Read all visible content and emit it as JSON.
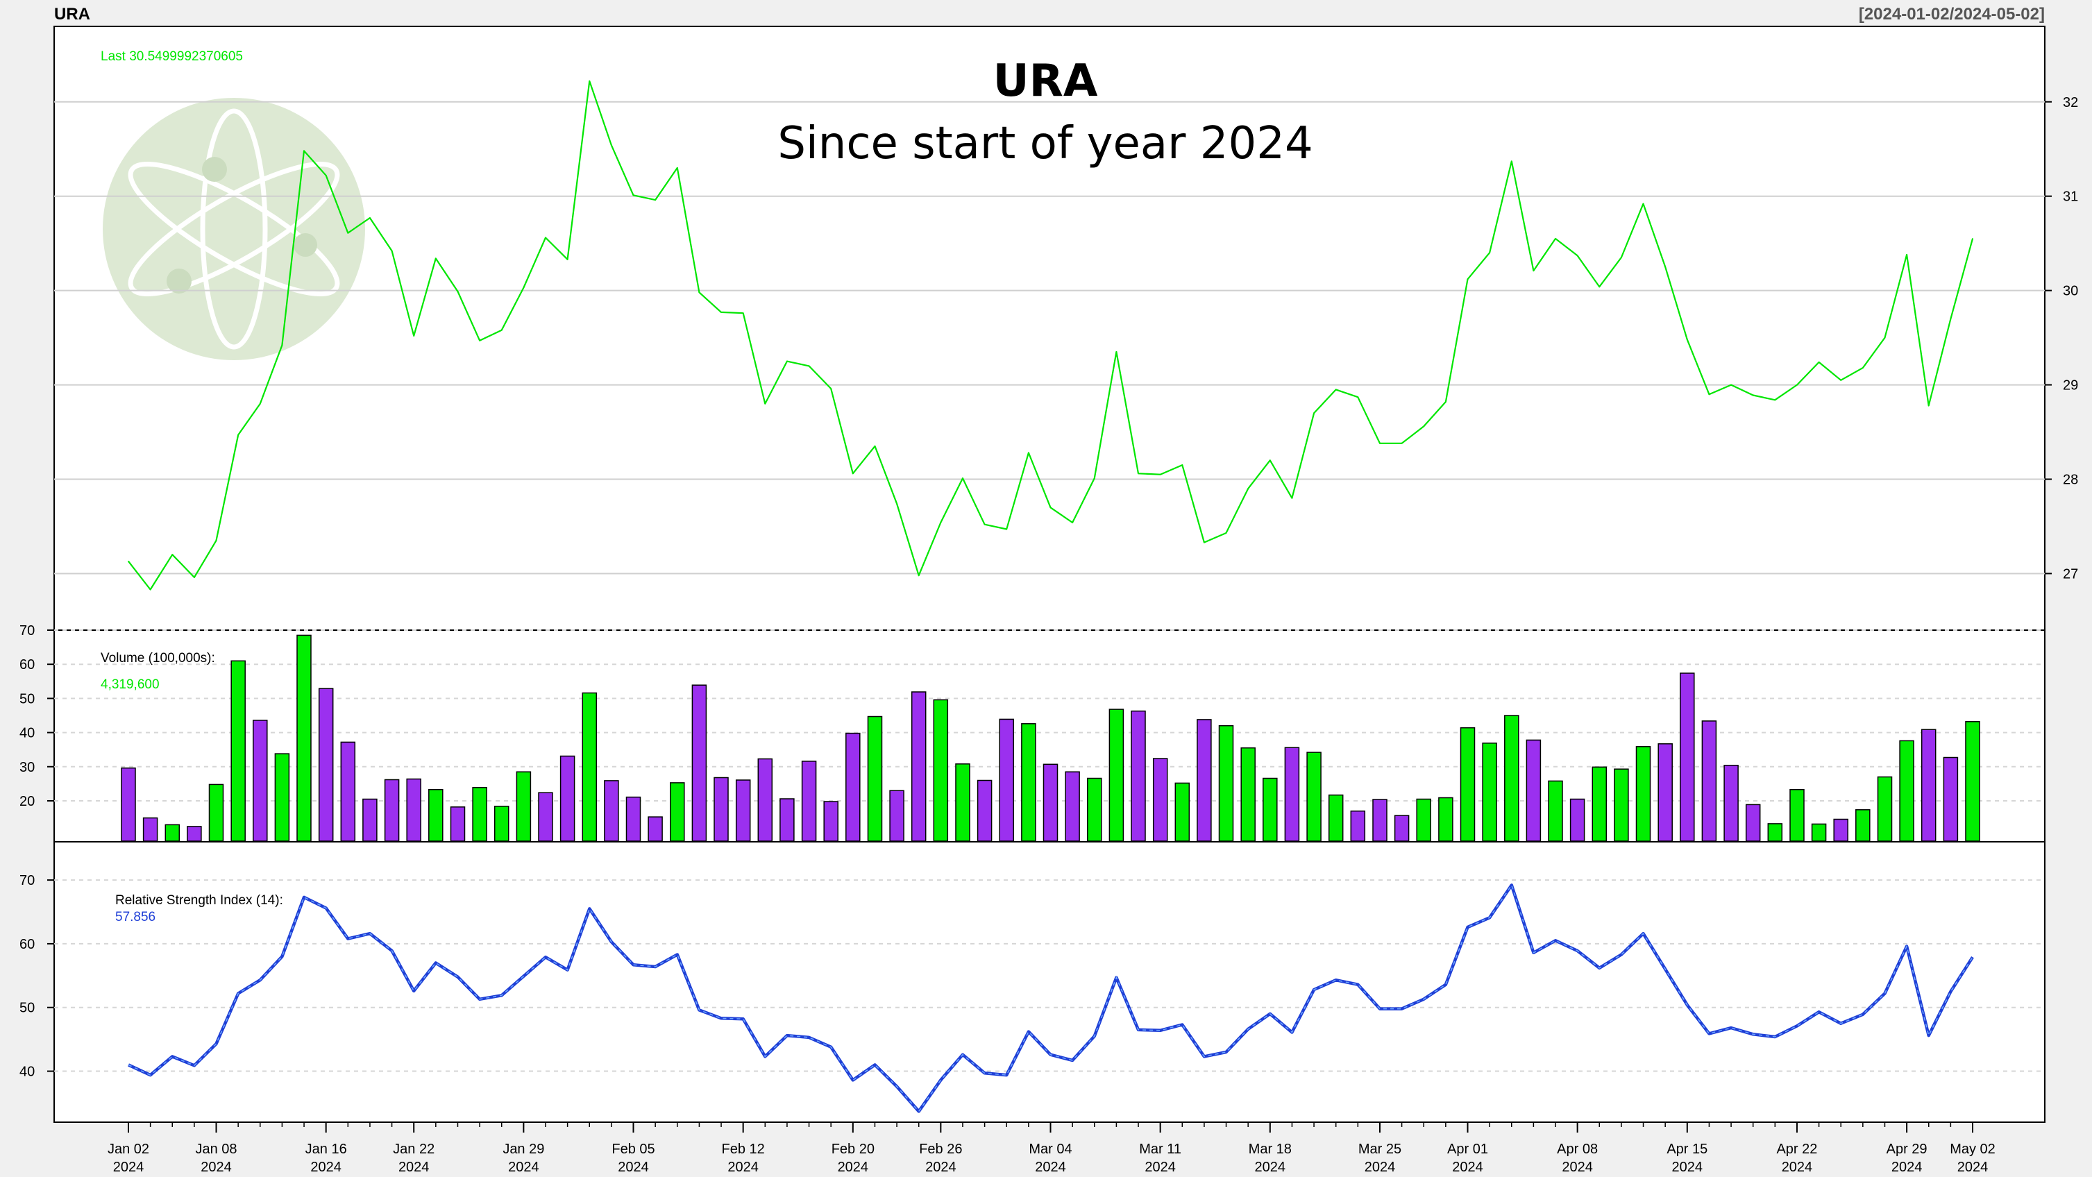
{
  "header": {
    "symbol": "URA",
    "range": "[2024-01-02/2024-05-02]"
  },
  "title": "URA",
  "subtitle": "Since start of year 2024",
  "colors": {
    "price": "#00e600",
    "up": "#00ee00",
    "down": "#9b30ef",
    "rsi": "#1f3fd6",
    "rsi_dash": "#6fa8ff",
    "logo": "#dde9d3"
  },
  "logo": {
    "icon": "atom-icon"
  },
  "chart_data": [
    {
      "type": "line",
      "name": "price",
      "label": "Last 30.5499992370605",
      "x": [
        "2024-01-02",
        "2024-01-03",
        "2024-01-04",
        "2024-01-05",
        "2024-01-08",
        "2024-01-09",
        "2024-01-10",
        "2024-01-11",
        "2024-01-12",
        "2024-01-16",
        "2024-01-17",
        "2024-01-18",
        "2024-01-19",
        "2024-01-22",
        "2024-01-23",
        "2024-01-24",
        "2024-01-25",
        "2024-01-26",
        "2024-01-29",
        "2024-01-30",
        "2024-01-31",
        "2024-02-01",
        "2024-02-02",
        "2024-02-05",
        "2024-02-06",
        "2024-02-07",
        "2024-02-08",
        "2024-02-09",
        "2024-02-12",
        "2024-02-13",
        "2024-02-14",
        "2024-02-15",
        "2024-02-16",
        "2024-02-20",
        "2024-02-21",
        "2024-02-22",
        "2024-02-23",
        "2024-02-26",
        "2024-02-27",
        "2024-02-28",
        "2024-02-29",
        "2024-03-01",
        "2024-03-04",
        "2024-03-05",
        "2024-03-06",
        "2024-03-07",
        "2024-03-08",
        "2024-03-11",
        "2024-03-12",
        "2024-03-13",
        "2024-03-14",
        "2024-03-15",
        "2024-03-18",
        "2024-03-19",
        "2024-03-20",
        "2024-03-21",
        "2024-03-22",
        "2024-03-25",
        "2024-03-26",
        "2024-03-27",
        "2024-03-28",
        "2024-04-01",
        "2024-04-02",
        "2024-04-03",
        "2024-04-04",
        "2024-04-05",
        "2024-04-08",
        "2024-04-09",
        "2024-04-10",
        "2024-04-11",
        "2024-04-12",
        "2024-04-15",
        "2024-04-16",
        "2024-04-17",
        "2024-04-18",
        "2024-04-19",
        "2024-04-22",
        "2024-04-23",
        "2024-04-24",
        "2024-04-25",
        "2024-04-26",
        "2024-04-29",
        "2024-04-30",
        "2024-05-01",
        "2024-05-02"
      ],
      "values": [
        27.13,
        26.83,
        27.2,
        26.96,
        27.35,
        28.47,
        28.8,
        29.42,
        31.48,
        31.22,
        30.61,
        30.77,
        30.42,
        29.52,
        30.34,
        29.99,
        29.47,
        29.58,
        30.03,
        30.56,
        30.33,
        32.22,
        31.54,
        31.01,
        30.96,
        31.3,
        29.98,
        29.77,
        29.76,
        28.8,
        29.25,
        29.2,
        28.96,
        28.06,
        28.35,
        27.74,
        26.98,
        27.54,
        28.01,
        27.52,
        27.47,
        28.28,
        27.7,
        27.54,
        28.01,
        29.35,
        28.06,
        28.05,
        28.15,
        27.33,
        27.43,
        27.9,
        28.2,
        27.8,
        28.7,
        28.95,
        28.87,
        28.38,
        28.38,
        28.56,
        28.82,
        30.12,
        30.4,
        31.37,
        30.21,
        30.55,
        30.37,
        30.04,
        30.35,
        30.92,
        30.25,
        29.48,
        28.9,
        29.0,
        28.89,
        28.84,
        29.0,
        29.24,
        29.05,
        29.18,
        29.5,
        30.38,
        28.78,
        29.7,
        30.55
      ],
      "yticks": [
        27,
        28,
        29,
        30,
        31,
        32
      ],
      "ylim": [
        26.4,
        32.8
      ]
    },
    {
      "type": "bar",
      "name": "volume",
      "label": "Volume (100,000s):",
      "last_value": "4,319,600",
      "values": [
        29.6,
        15,
        13,
        12.5,
        24.8,
        61,
        43.6,
        33.8,
        68.5,
        52.9,
        37.2,
        20.5,
        26.2,
        26.4,
        23.3,
        18.2,
        23.9,
        18.4,
        28.5,
        22.4,
        33.1,
        51.6,
        25.9,
        21.1,
        15.3,
        25.3,
        53.9,
        26.8,
        26.1,
        32.3,
        20.6,
        31.6,
        19.8,
        39.8,
        44.7,
        23,
        51.9,
        49.6,
        30.8,
        26,
        43.9,
        42.6,
        30.7,
        28.5,
        26.6,
        46.8,
        46.3,
        32.4,
        25.2,
        43.8,
        42,
        35.5,
        26.6,
        35.6,
        34.2,
        21.7,
        17,
        20.4,
        15.7,
        20.5,
        20.9,
        41.4,
        36.9,
        45,
        37.8,
        25.8,
        20.5,
        29.9,
        29.3,
        35.9,
        36.7,
        57.4,
        43.4,
        30.4,
        18.9,
        13.3,
        23.3,
        13.2,
        14.6,
        17.4,
        27,
        37.6,
        40.9,
        32.7,
        43.2
      ],
      "up": [
        false,
        false,
        true,
        false,
        true,
        true,
        false,
        true,
        true,
        false,
        false,
        false,
        false,
        false,
        true,
        false,
        true,
        true,
        true,
        false,
        false,
        true,
        false,
        false,
        false,
        true,
        false,
        false,
        false,
        false,
        false,
        false,
        false,
        false,
        true,
        false,
        false,
        true,
        true,
        false,
        false,
        true,
        false,
        false,
        true,
        true,
        false,
        false,
        true,
        false,
        true,
        true,
        true,
        false,
        true,
        true,
        false,
        false,
        false,
        true,
        true,
        true,
        true,
        true,
        false,
        true,
        false,
        true,
        true,
        true,
        false,
        false,
        false,
        false,
        false,
        true,
        true,
        true,
        false,
        true,
        true,
        true,
        false,
        false,
        true
      ],
      "yticks": [
        20,
        30,
        40,
        50,
        60,
        70
      ],
      "ylim": [
        8,
        70
      ]
    },
    {
      "type": "line",
      "name": "rsi",
      "label": "Relative Strength Index (14):",
      "last_value": "57.856",
      "values": [
        41,
        39.4,
        42.3,
        40.9,
        44.3,
        52.2,
        54.3,
        58,
        67.3,
        65.6,
        60.8,
        61.6,
        58.9,
        52.6,
        57,
        54.8,
        51.3,
        51.9,
        54.9,
        57.9,
        55.9,
        65.5,
        60.3,
        56.7,
        56.4,
        58.3,
        49.6,
        48.3,
        48.2,
        42.3,
        45.6,
        45.3,
        43.8,
        38.6,
        41,
        37.6,
        33.7,
        38.6,
        42.6,
        39.7,
        39.4,
        46.2,
        42.6,
        41.7,
        45.5,
        54.7,
        46.5,
        46.4,
        47.3,
        42.3,
        43,
        46.6,
        49,
        46.1,
        52.8,
        54.3,
        53.6,
        49.8,
        49.8,
        51.3,
        53.6,
        62.6,
        64.1,
        69.2,
        58.6,
        60.5,
        58.9,
        56.2,
        58.3,
        61.6,
        56,
        50.4,
        45.9,
        46.8,
        45.8,
        45.4,
        47.1,
        49.3,
        47.5,
        48.9,
        52.2,
        59.6,
        45.6,
        52.5,
        57.9
      ],
      "yticks": [
        40,
        50,
        60,
        70
      ],
      "ylim": [
        32,
        76
      ]
    }
  ],
  "x_axis": {
    "ticks": [
      {
        "label": "Jan 02",
        "year": "2024"
      },
      {
        "label": "Jan 08",
        "year": "2024"
      },
      {
        "label": "Jan 16",
        "year": "2024"
      },
      {
        "label": "Jan 22",
        "year": "2024"
      },
      {
        "label": "Jan 29",
        "year": "2024"
      },
      {
        "label": "Feb 05",
        "year": "2024"
      },
      {
        "label": "Feb 12",
        "year": "2024"
      },
      {
        "label": "Feb 20",
        "year": "2024"
      },
      {
        "label": "Feb 26",
        "year": "2024"
      },
      {
        "label": "Mar 04",
        "year": "2024"
      },
      {
        "label": "Mar 11",
        "year": "2024"
      },
      {
        "label": "Mar 18",
        "year": "2024"
      },
      {
        "label": "Mar 25",
        "year": "2024"
      },
      {
        "label": "Apr 01",
        "year": "2024"
      },
      {
        "label": "Apr 08",
        "year": "2024"
      },
      {
        "label": "Apr 15",
        "year": "2024"
      },
      {
        "label": "Apr 22",
        "year": "2024"
      },
      {
        "label": "Apr 29",
        "year": "2024"
      },
      {
        "label": "May 02",
        "year": "2024"
      }
    ],
    "tick_indices": [
      0,
      4,
      9,
      13,
      18,
      23,
      28,
      33,
      37,
      42,
      47,
      52,
      57,
      61,
      66,
      71,
      76,
      81,
      84
    ]
  }
}
